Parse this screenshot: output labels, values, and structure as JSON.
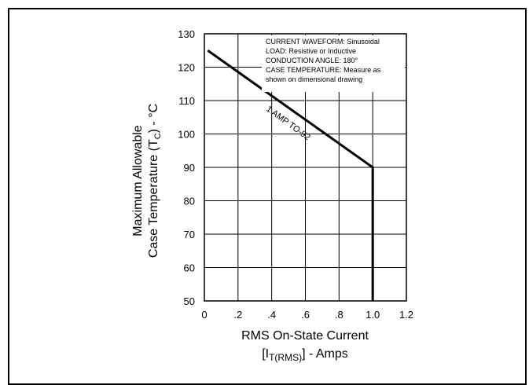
{
  "chart_data": {
    "type": "line",
    "title": "",
    "xlabel_line1": "RMS On-State Current",
    "xlabel_line2_prefix": "[I",
    "xlabel_line2_sub": "T(RMS)",
    "xlabel_line2_suffix": "] - Amps",
    "ylabel_line1": "Maximum Allowable",
    "ylabel_line2_prefix": "Case Temperature (T",
    "ylabel_line2_sub": "C",
    "ylabel_line2_suffix": ") - °C",
    "xlim": [
      0,
      1.2
    ],
    "ylim": [
      50,
      130
    ],
    "x_ticks": [
      {
        "value": 0,
        "label": "0"
      },
      {
        "value": 0.2,
        "label": ".2"
      },
      {
        "value": 0.4,
        "label": ".4"
      },
      {
        "value": 0.6,
        "label": ".6"
      },
      {
        "value": 0.8,
        "label": ".8"
      },
      {
        "value": 1.0,
        "label": "1.0"
      },
      {
        "value": 1.2,
        "label": "1.2"
      }
    ],
    "y_ticks": [
      {
        "value": 50,
        "label": "50"
      },
      {
        "value": 60,
        "label": "60"
      },
      {
        "value": 70,
        "label": "70"
      },
      {
        "value": 80,
        "label": "80"
      },
      {
        "value": 90,
        "label": "90"
      },
      {
        "value": 100,
        "label": "100"
      },
      {
        "value": 110,
        "label": "110"
      },
      {
        "value": 120,
        "label": "120"
      },
      {
        "value": 130,
        "label": "130"
      }
    ],
    "grid": true,
    "series": [
      {
        "name": "1 AMP TO-92",
        "color": "#000000",
        "x": [
          0.02,
          1.0,
          1.0
        ],
        "y": [
          125,
          90,
          50
        ]
      }
    ],
    "annotation_lines": [
      "CURRENT WAVEFORM: Sinusoidal",
      "LOAD: Resistive or Inductive",
      "CONDUCTION ANGLE: 180°",
      "CASE TEMPERATURE: Measure as",
      "shown on dimensional drawing"
    ]
  }
}
